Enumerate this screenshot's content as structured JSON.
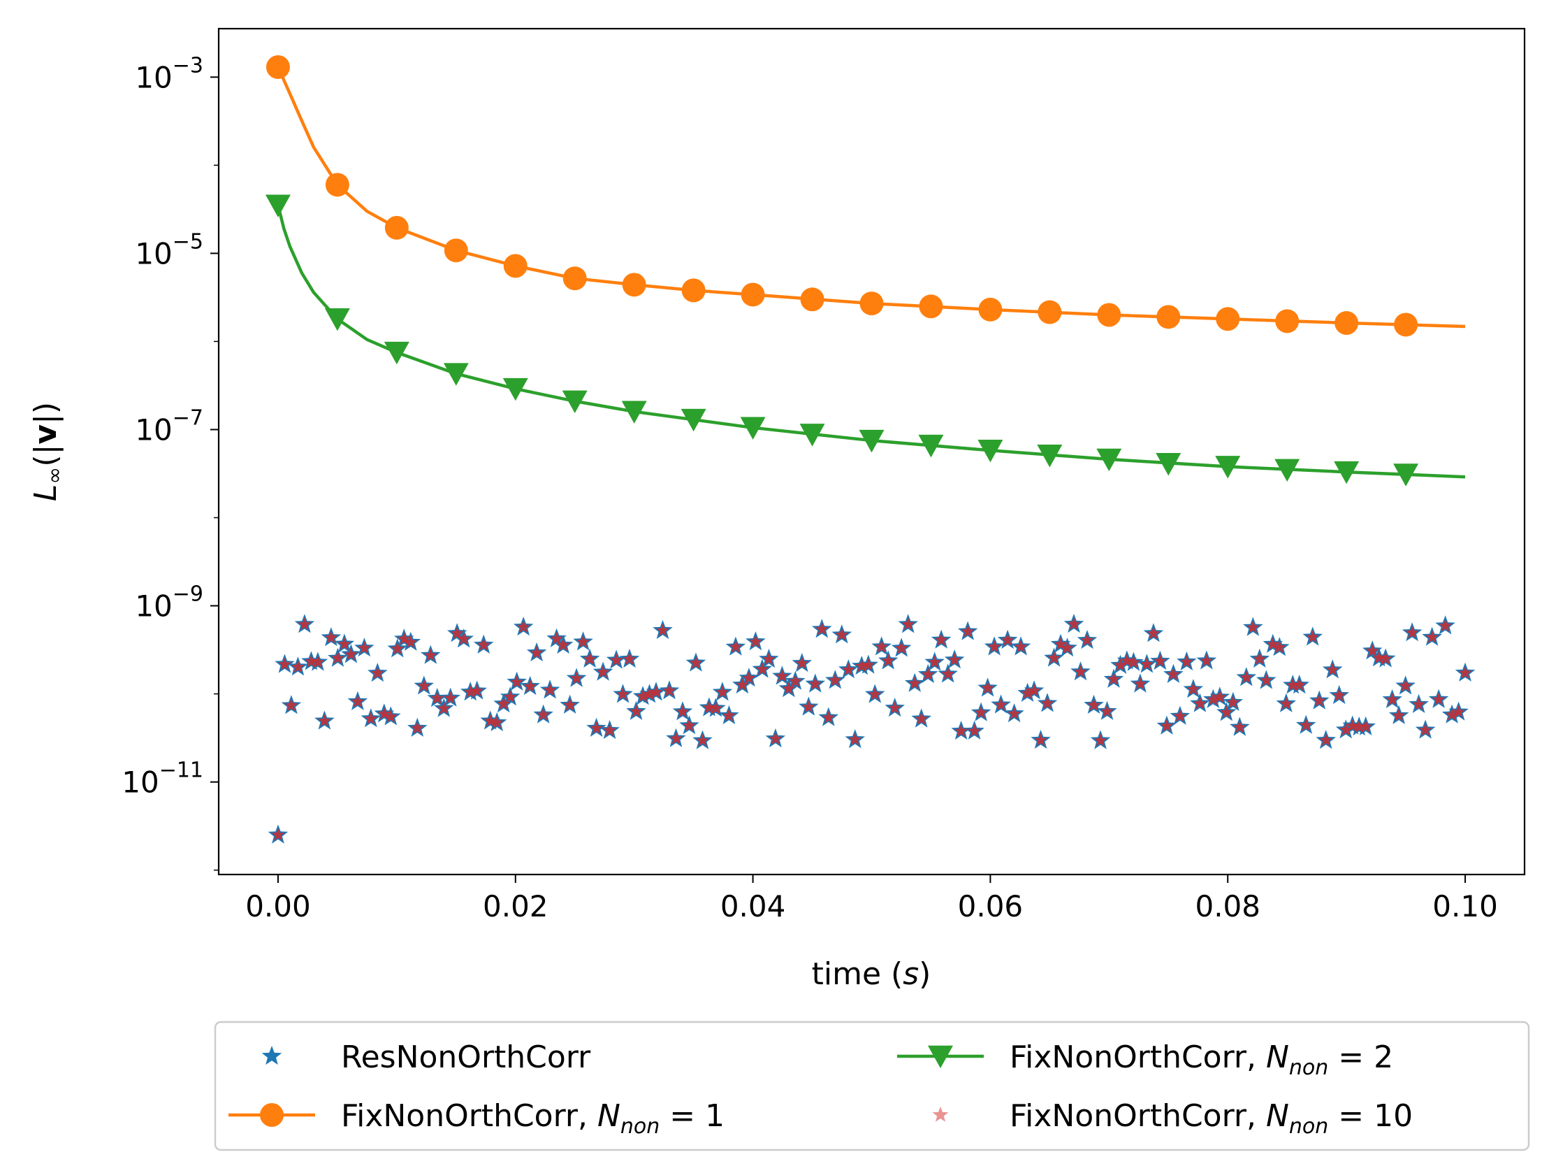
{
  "chart_data": {
    "type": "line",
    "x_axis": {
      "label_main": "time (",
      "label_var": "s",
      "label_close": ")",
      "lim": [
        -0.005,
        0.105
      ],
      "ticks": [
        0.0,
        0.02,
        0.04,
        0.06,
        0.08,
        0.1
      ],
      "tick_labels": [
        "0.00",
        "0.02",
        "0.04",
        "0.06",
        "0.08",
        "0.10"
      ]
    },
    "y_axis": {
      "scale": "log",
      "label_main": "L",
      "label_sub": "∞",
      "label_open": "(|",
      "label_bold": "v",
      "label_close": "|)",
      "lim_log10": [
        -12.05,
        -2.45
      ],
      "ticks_log10": [
        -3,
        -5,
        -7,
        -9,
        -11
      ],
      "tick_base": "10",
      "tick_exps": [
        "−3",
        "−5",
        "−7",
        "−9",
        "−11"
      ]
    },
    "legend": {
      "placement": "below",
      "entries": [
        {
          "label": "ResNonOrthCorr",
          "marker": "star",
          "color": "#1f77b4"
        },
        {
          "label": "FixNonOrthCorr, ",
          "math_main": "N",
          "math_sub": "non",
          "math_rest": " = 1",
          "marker": "circle",
          "color": "#ff7f0e"
        },
        {
          "label": "FixNonOrthCorr, ",
          "math_main": "N",
          "math_sub": "non",
          "math_rest": " = 2",
          "marker": "triangle-down",
          "color": "#2ca02c"
        },
        {
          "label": "FixNonOrthCorr, ",
          "math_main": "N",
          "math_sub": "non",
          "math_rest": " = 10",
          "marker": "star",
          "color": "#d62728"
        }
      ]
    },
    "series": [
      {
        "label_ref": 1,
        "color": "#ff7f0e",
        "marker": "circle",
        "marker_x": [
          0.0,
          0.005,
          0.01,
          0.015,
          0.02,
          0.025,
          0.03,
          0.035,
          0.04,
          0.045,
          0.05,
          0.055,
          0.06,
          0.065,
          0.07,
          0.075,
          0.08,
          0.085,
          0.09,
          0.095
        ],
        "marker_y": [
          0.0013,
          6e-05,
          1.95e-05,
          1.08e-05,
          7.2e-06,
          5.2e-06,
          4.4e-06,
          3.8e-06,
          3.4e-06,
          3e-06,
          2.7e-06,
          2.5e-06,
          2.3e-06,
          2.15e-06,
          2e-06,
          1.9e-06,
          1.8e-06,
          1.7e-06,
          1.62e-06,
          1.55e-06
        ],
        "line_x": [
          0.0,
          0.001,
          0.002,
          0.003,
          0.005,
          0.0075,
          0.01,
          0.015,
          0.02,
          0.025,
          0.03,
          0.035,
          0.04,
          0.05,
          0.06,
          0.07,
          0.08,
          0.09,
          0.1
        ],
        "line_y": [
          0.0013,
          0.00065,
          0.00032,
          0.00016,
          6e-05,
          3e-05,
          1.95e-05,
          1.08e-05,
          7.2e-06,
          5.2e-06,
          4.4e-06,
          3.8e-06,
          3.4e-06,
          2.7e-06,
          2.3e-06,
          2e-06,
          1.8e-06,
          1.62e-06,
          1.48e-06
        ]
      },
      {
        "label_ref": 2,
        "color": "#2ca02c",
        "marker": "triangle-down",
        "marker_x": [
          0.0,
          0.005,
          0.01,
          0.015,
          0.02,
          0.025,
          0.03,
          0.035,
          0.04,
          0.045,
          0.05,
          0.055,
          0.06,
          0.065,
          0.07,
          0.075,
          0.08,
          0.085,
          0.09,
          0.095
        ],
        "marker_y": [
          3.5e-05,
          1.8e-06,
          7.5e-07,
          4.3e-07,
          2.9e-07,
          2.1e-07,
          1.6e-07,
          1.3e-07,
          1.05e-07,
          8.8e-08,
          7.5e-08,
          6.6e-08,
          5.8e-08,
          5.1e-08,
          4.6e-08,
          4.1e-08,
          3.8e-08,
          3.5e-08,
          3.3e-08,
          3.1e-08
        ],
        "line_x": [
          0.0,
          0.0005,
          0.001,
          0.002,
          0.003,
          0.005,
          0.0075,
          0.01,
          0.015,
          0.02,
          0.025,
          0.03,
          0.04,
          0.05,
          0.06,
          0.07,
          0.08,
          0.09,
          0.1
        ],
        "line_y": [
          3.5e-05,
          1.9e-05,
          1.2e-05,
          6e-06,
          3.6e-06,
          1.8e-06,
          1.05e-06,
          7.5e-07,
          4.3e-07,
          2.9e-07,
          2.1e-07,
          1.6e-07,
          1.05e-07,
          7.5e-08,
          5.8e-08,
          4.6e-08,
          3.8e-08,
          3.3e-08,
          2.9e-08
        ]
      },
      {
        "label_ref": 0,
        "color": "#1f77b4",
        "marker": "star",
        "noise": {
          "n": 180,
          "x_range": [
            0.0,
            0.1
          ],
          "y_range": [
            1.5e-11,
            1.2e-09
          ],
          "first_point": [
            0.0,
            2.5e-12
          ]
        }
      },
      {
        "label_ref": 3,
        "color": "#d62728",
        "marker": "star",
        "noise": {
          "n": 180,
          "x_range": [
            0.0,
            0.1
          ],
          "y_range": [
            1.5e-11,
            1.2e-09
          ],
          "first_point": [
            0.0,
            2.5e-12
          ]
        }
      }
    ]
  }
}
